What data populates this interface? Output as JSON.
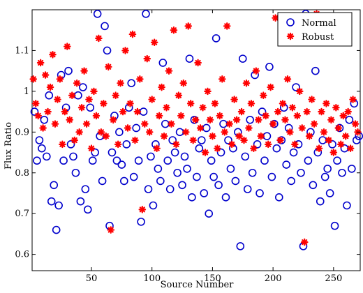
{
  "chart_data": {
    "type": "scatter",
    "xlabel": "Source Number",
    "ylabel": "Flux Ratio",
    "xlim": [
      1,
      272
    ],
    "ylim": [
      0.56,
      1.2
    ],
    "xticks": [
      50,
      100,
      150,
      200,
      250
    ],
    "yticks": [
      0.6,
      0.7,
      0.8,
      0.9,
      1.0,
      1.1
    ],
    "xtick_labels": [
      "50",
      "100",
      "150",
      "200",
      "250"
    ],
    "ytick_labels": [
      "0.6",
      "0.7",
      "0.8",
      "0.9",
      "1",
      "1.1"
    ],
    "grid": false,
    "legend_position": "top-right",
    "series": [
      {
        "name": "Normal",
        "marker": "circle-open",
        "color": "#0000cc",
        "points": [
          [
            3,
            0.95
          ],
          [
            5,
            0.83
          ],
          [
            7,
            0.88
          ],
          [
            9,
            0.86
          ],
          [
            11,
            0.93
          ],
          [
            13,
            0.84
          ],
          [
            15,
            0.99
          ],
          [
            17,
            0.73
          ],
          [
            19,
            0.77
          ],
          [
            21,
            0.66
          ],
          [
            23,
            0.72
          ],
          [
            25,
            1.04
          ],
          [
            27,
            0.83
          ],
          [
            29,
            0.96
          ],
          [
            31,
            1.05
          ],
          [
            33,
            0.87
          ],
          [
            35,
            0.84
          ],
          [
            37,
            0.8
          ],
          [
            39,
            0.99
          ],
          [
            41,
            0.73
          ],
          [
            43,
            1.01
          ],
          [
            45,
            0.76
          ],
          [
            47,
            0.71
          ],
          [
            49,
            0.96
          ],
          [
            51,
            0.83
          ],
          [
            53,
            0.85
          ],
          [
            55,
            1.19
          ],
          [
            57,
            0.89
          ],
          [
            59,
            0.78
          ],
          [
            61,
            1.16
          ],
          [
            63,
            1.1
          ],
          [
            65,
            0.67
          ],
          [
            67,
            0.85
          ],
          [
            69,
            0.94
          ],
          [
            71,
            0.83
          ],
          [
            73,
            0.9
          ],
          [
            75,
            0.82
          ],
          [
            77,
            0.78
          ],
          [
            79,
            0.87
          ],
          [
            81,
            0.96
          ],
          [
            83,
            1.02
          ],
          [
            85,
            0.79
          ],
          [
            87,
            0.91
          ],
          [
            89,
            0.83
          ],
          [
            91,
            0.68
          ],
          [
            93,
            0.95
          ],
          [
            95,
            1.19
          ],
          [
            97,
            0.76
          ],
          [
            99,
            0.84
          ],
          [
            101,
            0.72
          ],
          [
            103,
            0.87
          ],
          [
            105,
            0.81
          ],
          [
            107,
            0.78
          ],
          [
            109,
            1.07
          ],
          [
            111,
            0.92
          ],
          [
            113,
            0.83
          ],
          [
            115,
            0.76
          ],
          [
            117,
            0.88
          ],
          [
            119,
            0.85
          ],
          [
            121,
            0.8
          ],
          [
            123,
            0.9
          ],
          [
            125,
            0.77
          ],
          [
            127,
            0.84
          ],
          [
            129,
            0.81
          ],
          [
            131,
            1.08
          ],
          [
            133,
            0.74
          ],
          [
            135,
            0.93
          ],
          [
            137,
            0.79
          ],
          [
            139,
            0.86
          ],
          [
            141,
            0.88
          ],
          [
            143,
            0.75
          ],
          [
            145,
            0.91
          ],
          [
            147,
            0.7
          ],
          [
            149,
            0.83
          ],
          [
            151,
            0.79
          ],
          [
            153,
            1.13
          ],
          [
            155,
            0.77
          ],
          [
            157,
            0.85
          ],
          [
            159,
            0.92
          ],
          [
            161,
            0.74
          ],
          [
            163,
            0.88
          ],
          [
            165,
            0.81
          ],
          [
            167,
            0.86
          ],
          [
            169,
            0.78
          ],
          [
            171,
            0.9
          ],
          [
            173,
            0.62
          ],
          [
            175,
            1.08
          ],
          [
            177,
            0.84
          ],
          [
            179,
            0.76
          ],
          [
            181,
            0.93
          ],
          [
            183,
            0.8
          ],
          [
            185,
            1.04
          ],
          [
            187,
            0.87
          ],
          [
            189,
            0.75
          ],
          [
            191,
            0.95
          ],
          [
            193,
            0.83
          ],
          [
            195,
            0.89
          ],
          [
            197,
            1.06
          ],
          [
            199,
            0.79
          ],
          [
            201,
            0.92
          ],
          [
            203,
            0.86
          ],
          [
            205,
            0.74
          ],
          [
            207,
            0.88
          ],
          [
            209,
            0.96
          ],
          [
            211,
            0.82
          ],
          [
            213,
            0.91
          ],
          [
            215,
            0.78
          ],
          [
            217,
            0.85
          ],
          [
            219,
            1.01
          ],
          [
            221,
            0.87
          ],
          [
            223,
            0.8
          ],
          [
            225,
            0.62
          ],
          [
            227,
            1.19
          ],
          [
            229,
            0.83
          ],
          [
            231,
            0.9
          ],
          [
            233,
            0.77
          ],
          [
            235,
            1.05
          ],
          [
            237,
            0.85
          ],
          [
            239,
            0.73
          ],
          [
            241,
            0.88
          ],
          [
            243,
            0.79
          ],
          [
            245,
            0.81
          ],
          [
            247,
            0.75
          ],
          [
            249,
            0.87
          ],
          [
            251,
            0.67
          ],
          [
            253,
            0.83
          ],
          [
            255,
            0.91
          ],
          [
            257,
            0.8
          ],
          [
            259,
            0.86
          ],
          [
            261,
            0.72
          ],
          [
            263,
            0.93
          ],
          [
            265,
            0.81
          ],
          [
            267,
            0.97
          ],
          [
            269,
            0.88
          ],
          [
            271,
            0.89
          ]
        ]
      },
      {
        "name": "Robust",
        "marker": "asterisk",
        "color": "#ff0000",
        "points": [
          [
            2,
            1.03
          ],
          [
            4,
            0.97
          ],
          [
            6,
            0.94
          ],
          [
            8,
            1.07
          ],
          [
            10,
            0.91
          ],
          [
            12,
            1.04
          ],
          [
            14,
            0.95
          ],
          [
            16,
            1.01
          ],
          [
            18,
            1.09
          ],
          [
            20,
            0.92
          ],
          [
            22,
            0.98
          ],
          [
            24,
            1.03
          ],
          [
            26,
            0.87
          ],
          [
            28,
            0.95
          ],
          [
            30,
            1.11
          ],
          [
            32,
            0.93
          ],
          [
            34,
            0.99
          ],
          [
            36,
            0.88
          ],
          [
            38,
            1.02
          ],
          [
            40,
            0.9
          ],
          [
            42,
            0.96
          ],
          [
            44,
            1.05
          ],
          [
            46,
            0.92
          ],
          [
            48,
            0.98
          ],
          [
            50,
            0.86
          ],
          [
            52,
            1.0
          ],
          [
            54,
            0.94
          ],
          [
            56,
            1.13
          ],
          [
            58,
            0.9
          ],
          [
            60,
            0.97
          ],
          [
            62,
            0.89
          ],
          [
            64,
            1.06
          ],
          [
            66,
            0.66
          ],
          [
            68,
            0.93
          ],
          [
            70,
            0.99
          ],
          [
            72,
            0.87
          ],
          [
            74,
            1.02
          ],
          [
            76,
            0.95
          ],
          [
            78,
            1.1
          ],
          [
            80,
            0.91
          ],
          [
            82,
            0.97
          ],
          [
            84,
            1.14
          ],
          [
            86,
            0.88
          ],
          [
            88,
            0.95
          ],
          [
            90,
            1.03
          ],
          [
            92,
            0.71
          ],
          [
            94,
            0.92
          ],
          [
            96,
            1.08
          ],
          [
            98,
            0.9
          ],
          [
            100,
            0.98
          ],
          [
            102,
            1.12
          ],
          [
            104,
            0.86
          ],
          [
            106,
            0.94
          ],
          [
            108,
            1.01
          ],
          [
            110,
            0.89
          ],
          [
            112,
            0.96
          ],
          [
            114,
            1.05
          ],
          [
            116,
            0.92
          ],
          [
            118,
            1.15
          ],
          [
            120,
            0.87
          ],
          [
            122,
            0.99
          ],
          [
            124,
            0.94
          ],
          [
            126,
            1.02
          ],
          [
            128,
            0.9
          ],
          [
            130,
            1.16
          ],
          [
            132,
            0.97
          ],
          [
            134,
            0.88
          ],
          [
            136,
            0.93
          ],
          [
            138,
            1.07
          ],
          [
            140,
            0.91
          ],
          [
            142,
            0.96
          ],
          [
            144,
            0.85
          ],
          [
            146,
            1.0
          ],
          [
            148,
            0.93
          ],
          [
            150,
            0.89
          ],
          [
            152,
            0.97
          ],
          [
            154,
            0.86
          ],
          [
            156,
            0.94
          ],
          [
            158,
            1.03
          ],
          [
            160,
            0.9
          ],
          [
            162,
            1.16
          ],
          [
            164,
            0.92
          ],
          [
            166,
            0.87
          ],
          [
            168,
            0.98
          ],
          [
            170,
            0.93
          ],
          [
            172,
            0.89
          ],
          [
            174,
            0.95
          ],
          [
            176,
            0.88
          ],
          [
            178,
            1.02
          ],
          [
            180,
            0.91
          ],
          [
            182,
            0.97
          ],
          [
            184,
            0.86
          ],
          [
            186,
            1.05
          ],
          [
            188,
            0.93
          ],
          [
            190,
            0.89
          ],
          [
            192,
            0.99
          ],
          [
            194,
            0.94
          ],
          [
            196,
            0.87
          ],
          [
            198,
            1.01
          ],
          [
            200,
            0.92
          ],
          [
            202,
            1.18
          ],
          [
            204,
            0.95
          ],
          [
            206,
            0.88
          ],
          [
            208,
            0.97
          ],
          [
            210,
            0.93
          ],
          [
            212,
            1.03
          ],
          [
            214,
            0.9
          ],
          [
            216,
            0.96
          ],
          [
            218,
            0.87
          ],
          [
            220,
            0.94
          ],
          [
            222,
            1.0
          ],
          [
            224,
            0.91
          ],
          [
            226,
            0.63
          ],
          [
            228,
            0.95
          ],
          [
            230,
            0.89
          ],
          [
            232,
            0.98
          ],
          [
            234,
            0.92
          ],
          [
            236,
            1.19
          ],
          [
            238,
            0.86
          ],
          [
            240,
            0.95
          ],
          [
            242,
            0.9
          ],
          [
            244,
            0.97
          ],
          [
            246,
            0.88
          ],
          [
            248,
            0.93
          ],
          [
            250,
            0.85
          ],
          [
            252,
            0.96
          ],
          [
            254,
            0.91
          ],
          [
            256,
            0.87
          ],
          [
            258,
            0.94
          ],
          [
            260,
            0.89
          ],
          [
            262,
            0.95
          ],
          [
            264,
            0.86
          ],
          [
            266,
            0.98
          ],
          [
            268,
            0.92
          ],
          [
            270,
            0.9
          ]
        ]
      }
    ]
  }
}
